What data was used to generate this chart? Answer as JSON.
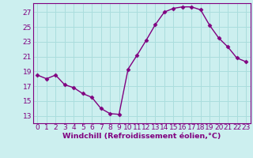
{
  "x": [
    0,
    1,
    2,
    3,
    4,
    5,
    6,
    7,
    8,
    9,
    10,
    11,
    12,
    13,
    14,
    15,
    16,
    17,
    18,
    19,
    20,
    21,
    22,
    23
  ],
  "y": [
    18.5,
    18.0,
    18.5,
    17.2,
    16.8,
    16.0,
    15.5,
    14.0,
    13.3,
    13.2,
    19.3,
    21.2,
    23.2,
    25.3,
    27.0,
    27.5,
    27.7,
    27.7,
    27.3,
    25.2,
    23.5,
    22.3,
    20.8,
    20.3
  ],
  "line_color": "#800080",
  "marker": "D",
  "marker_size": 2.5,
  "bg_color": "#ccefef",
  "grid_color": "#aadddd",
  "ylabel_ticks": [
    13,
    15,
    17,
    19,
    21,
    23,
    25,
    27
  ],
  "ylim": [
    12.0,
    28.2
  ],
  "xlim": [
    -0.5,
    23.5
  ],
  "xlabel": "Windchill (Refroidissement éolien,°C)",
  "tick_fontsize": 6.5,
  "label_fontsize": 6.8,
  "line_width": 1.0
}
